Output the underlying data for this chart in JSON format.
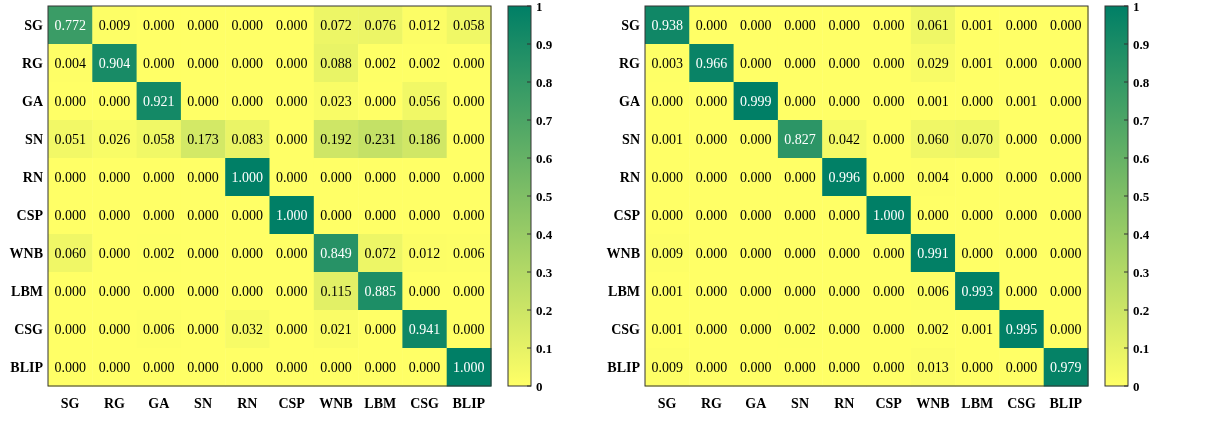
{
  "chart_data": [
    {
      "type": "heatmap",
      "categories": [
        "SG",
        "RG",
        "GA",
        "SN",
        "RN",
        "CSP",
        "WNB",
        "LBM",
        "CSG",
        "BLIP"
      ],
      "y_categories": [
        "SG",
        "RG",
        "GA",
        "SN",
        "RN",
        "CSP",
        "WNB",
        "LBM",
        "CSG",
        "BLIP"
      ],
      "cells": [
        [
          0.772,
          0.009,
          0,
          0,
          0,
          0,
          0.072,
          0.076,
          0.012,
          0.058
        ],
        [
          0.004,
          0.904,
          0,
          0,
          0,
          0,
          0.088,
          0.002,
          0.002,
          0
        ],
        [
          0,
          0,
          0.921,
          0,
          0,
          0,
          0.023,
          0,
          0.056,
          0
        ],
        [
          0.051,
          0.026,
          0.058,
          0.173,
          0.083,
          0,
          0.192,
          0.231,
          0.186,
          0
        ],
        [
          0,
          0,
          0,
          0,
          1,
          0,
          0,
          0,
          0,
          0
        ],
        [
          0,
          0,
          0,
          0,
          0,
          1,
          0,
          0,
          0,
          0
        ],
        [
          0.06,
          0,
          0.002,
          0,
          0,
          0,
          0.849,
          0.072,
          0.012,
          0.006
        ],
        [
          0,
          0,
          0,
          0,
          0,
          0,
          0.115,
          0.885,
          0,
          0
        ],
        [
          0,
          0,
          0.006,
          0,
          0.032,
          0,
          0.021,
          0,
          0.941,
          0
        ],
        [
          0,
          0,
          0,
          0,
          0,
          0,
          0,
          0,
          0,
          1
        ]
      ],
      "cell_labels": [
        [
          "0.772",
          "0.009",
          "0.000",
          "0.000",
          "0.000",
          "0.000",
          "0.072",
          "0.076",
          "0.012",
          "0.058"
        ],
        [
          "0.004",
          "0.904",
          "0.000",
          "0.000",
          "0.000",
          "0.000",
          "0.088",
          "0.002",
          "0.002",
          "0.000"
        ],
        [
          "0.000",
          "0.000",
          "0.921",
          "0.000",
          "0.000",
          "0.000",
          "0.023",
          "0.000",
          "0.056",
          "0.000"
        ],
        [
          "0.051",
          "0.026",
          "0.058",
          "0.173",
          "0.083",
          "0.000",
          "0.192",
          "0.231",
          "0.186",
          "0.000"
        ],
        [
          "0.000",
          "0.000",
          "0.000",
          "0.000",
          "1.000",
          "0.000",
          "0.000",
          "0.000",
          "0.000",
          "0.000"
        ],
        [
          "0.000",
          "0.000",
          "0.000",
          "0.000",
          "0.000",
          "1.000",
          "0.000",
          "0.000",
          "0.000",
          "0.000"
        ],
        [
          "0.060",
          "0.000",
          "0.002",
          "0.000",
          "0.000",
          "0.000",
          "0.849",
          "0.072",
          "0.012",
          "0.006"
        ],
        [
          "0.000",
          "0.000",
          "0.000",
          "0.000",
          "0.000",
          "0.000",
          "0.115",
          "0.885",
          "0.000",
          "0.000"
        ],
        [
          "0.000",
          "0.000",
          "0.006",
          "0.000",
          "0.032",
          "0.000",
          "0.021",
          "0.000",
          "0.941",
          "0.000"
        ],
        [
          "0.000",
          "0.000",
          "0.000",
          "0.000",
          "0.000",
          "0.000",
          "0.000",
          "0.000",
          "0.000",
          "1.000"
        ]
      ],
      "clim": [
        0,
        1
      ],
      "cticks": [
        0,
        0.1,
        0.2,
        0.3,
        0.4,
        0.5,
        0.6,
        0.7,
        0.8,
        0.9,
        1
      ]
    },
    {
      "type": "heatmap",
      "categories": [
        "SG",
        "RG",
        "GA",
        "SN",
        "RN",
        "CSP",
        "WNB",
        "LBM",
        "CSG",
        "BLIP"
      ],
      "y_categories": [
        "SG",
        "RG",
        "GA",
        "SN",
        "RN",
        "CSP",
        "WNB",
        "LBM",
        "CSG",
        "BLIP"
      ],
      "cells": [
        [
          0.938,
          0,
          0,
          0,
          0,
          0,
          0.061,
          0.001,
          0,
          0
        ],
        [
          0.003,
          0.966,
          0,
          0,
          0,
          0,
          0.029,
          0.001,
          0,
          0
        ],
        [
          0,
          0,
          0.999,
          0,
          0,
          0,
          0.001,
          0,
          0.001,
          0
        ],
        [
          0.001,
          0,
          0,
          0.827,
          0.042,
          0,
          0.06,
          0.07,
          0,
          0
        ],
        [
          0,
          0,
          0,
          0,
          0.996,
          0,
          0.004,
          0,
          0,
          0
        ],
        [
          0,
          0,
          0,
          0,
          0,
          1,
          0,
          0,
          0,
          0
        ],
        [
          0.009,
          0,
          0,
          0,
          0,
          0,
          0.991,
          0,
          0,
          0
        ],
        [
          0.001,
          0,
          0,
          0,
          0,
          0,
          0.006,
          0.993,
          0,
          0
        ],
        [
          0.001,
          0,
          0,
          0.002,
          0,
          0,
          0.002,
          0.001,
          0.995,
          0
        ],
        [
          0.009,
          0,
          0,
          0,
          0,
          0,
          0.013,
          0,
          0,
          0.979
        ]
      ],
      "cell_labels": [
        [
          "0.938",
          "0.000",
          "0.000",
          "0.000",
          "0.000",
          "0.000",
          "0.061",
          "0.001",
          "0.000",
          "0.000"
        ],
        [
          "0.003",
          "0.966",
          "0.000",
          "0.000",
          "0.000",
          "0.000",
          "0.029",
          "0.001",
          "0.000",
          "0.000"
        ],
        [
          "0.000",
          "0.000",
          "0.999",
          "0.000",
          "0.000",
          "0.000",
          "0.001",
          "0.000",
          "0.001",
          "0.000"
        ],
        [
          "0.001",
          "0.000",
          "0.000",
          "0.827",
          "0.042",
          "0.000",
          "0.060",
          "0.070",
          "0.000",
          "0.000"
        ],
        [
          "0.000",
          "0.000",
          "0.000",
          "0.000",
          "0.996",
          "0.000",
          "0.004",
          "0.000",
          "0.000",
          "0.000"
        ],
        [
          "0.000",
          "0.000",
          "0.000",
          "0.000",
          "0.000",
          "1.000",
          "0.000",
          "0.000",
          "0.000",
          "0.000"
        ],
        [
          "0.009",
          "0.000",
          "0.000",
          "0.000",
          "0.000",
          "0.000",
          "0.991",
          "0.000",
          "0.000",
          "0.000"
        ],
        [
          "0.001",
          "0.000",
          "0.000",
          "0.000",
          "0.000",
          "0.000",
          "0.006",
          "0.993",
          "0.000",
          "0.000"
        ],
        [
          "0.001",
          "0.000",
          "0.000",
          "0.002",
          "0.000",
          "0.000",
          "0.002",
          "0.001",
          "0.995",
          "0.000"
        ],
        [
          "0.009",
          "0.000",
          "0.000",
          "0.000",
          "0.000",
          "0.000",
          "0.013",
          "0.000",
          "0.000",
          "0.979"
        ]
      ],
      "clim": [
        0,
        1
      ],
      "cticks": [
        0,
        0.1,
        0.2,
        0.3,
        0.4,
        0.5,
        0.6,
        0.7,
        0.8,
        0.9,
        1
      ]
    }
  ]
}
